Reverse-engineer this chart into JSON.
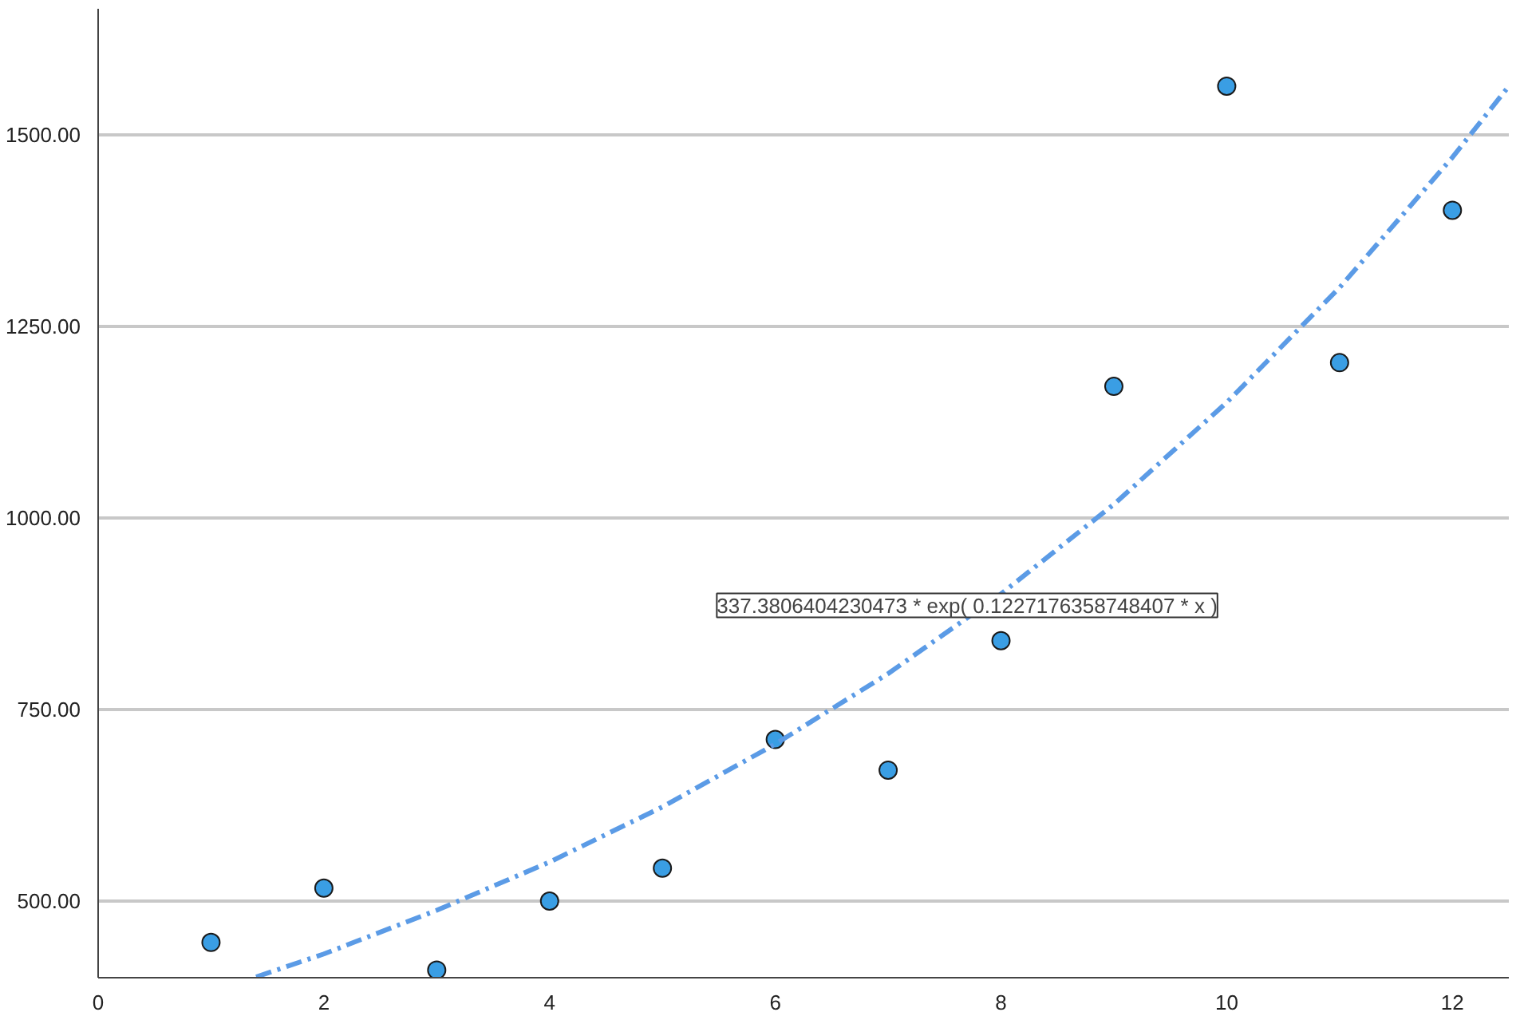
{
  "chart_data": {
    "type": "scatter",
    "x": [
      1,
      2,
      3,
      4,
      5,
      6,
      7,
      8,
      9,
      10,
      11,
      12
    ],
    "series": [
      {
        "color": "#3a9ee4",
        "marker": "circle",
        "values": [
          446,
          517,
          410,
          500,
          543,
          711,
          671,
          840,
          1172,
          1564,
          1203,
          1402
        ]
      },
      {
        "type": "line",
        "color": "#5b9be6",
        "line_style": "dashdot",
        "x": [
          1.4,
          2,
          3,
          4,
          5,
          6,
          7,
          8,
          9,
          10,
          11,
          12,
          12.5
        ],
        "values": [
          401,
          431,
          488,
          551,
          623,
          705,
          797,
          901,
          1018,
          1151,
          1301,
          1471,
          1564
        ]
      }
    ],
    "xlim": [
      0,
      12.5
    ],
    "ylim": [
      400,
      1665
    ],
    "xticks": [
      0,
      2,
      4,
      6,
      8,
      10,
      12
    ],
    "yticks": [
      {
        "value": 500,
        "label": "500.00"
      },
      {
        "value": 750,
        "label": "750.00"
      },
      {
        "value": 1000,
        "label": "1000.00"
      },
      {
        "value": 1250,
        "label": "1250.00"
      },
      {
        "value": 1500,
        "label": "1500.00"
      }
    ],
    "grid": "y",
    "annotations": [
      {
        "text": "337.3806404230473 * exp( 0.1227176358748407 * x )",
        "x": 7.7,
        "y": 886
      }
    ]
  }
}
